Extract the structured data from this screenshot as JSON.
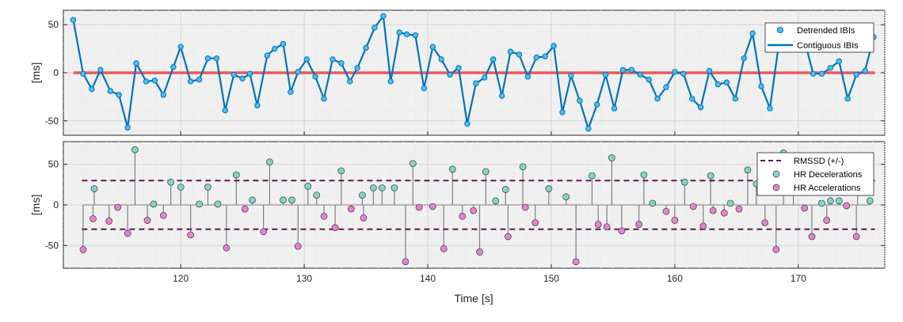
{
  "chart_data": [
    {
      "type": "line",
      "xlim": [
        110.5,
        177.0
      ],
      "ylim": [
        -65,
        65
      ],
      "yticks": [
        -50,
        0,
        50
      ],
      "ylabel": "[ms]",
      "grid": true,
      "legend_position": "top-right",
      "legend": [
        "Detrended IBIs",
        "Contiguous IBIs"
      ],
      "series": [
        {
          "name": "Detrended IBIs",
          "color": "#0072BD",
          "marker_color": "#4DBEEE",
          "x": [
            111.3,
            112.1,
            112.8,
            113.5,
            114.3,
            115.0,
            115.7,
            116.4,
            117.2,
            117.9,
            118.6,
            119.4,
            120.0,
            120.8,
            121.5,
            122.2,
            122.9,
            123.6,
            124.3,
            125.0,
            125.6,
            126.2,
            127.0,
            127.6,
            128.3,
            128.9,
            129.5,
            130.2,
            130.9,
            131.6,
            132.3,
            133.0,
            133.7,
            134.3,
            135.0,
            135.7,
            136.4,
            137.0,
            137.7,
            138.3,
            139.0,
            139.7,
            140.4,
            141.1,
            141.8,
            142.5,
            143.2,
            143.9,
            144.6,
            145.3,
            146.0,
            146.7,
            147.4,
            148.1,
            148.8,
            149.5,
            150.2,
            150.9,
            151.6,
            152.3,
            153.0,
            153.7,
            154.4,
            155.1,
            155.8,
            156.5,
            157.2,
            157.9,
            158.6,
            159.3,
            160.0,
            160.7,
            161.4,
            162.1,
            162.8,
            163.5,
            164.2,
            164.9,
            165.6,
            166.3,
            167.0,
            167.7,
            168.4,
            169.1,
            169.8,
            170.5,
            171.2,
            171.9,
            172.6,
            173.3,
            174.0,
            174.7,
            175.4,
            176.1
          ],
          "y": [
            55,
            -1,
            -17,
            3,
            -19,
            -23,
            -57,
            10,
            -9,
            -8,
            -23,
            6,
            27,
            -9,
            -7,
            15,
            15,
            -39,
            -2,
            -6,
            -1,
            -34,
            18,
            25,
            30,
            -20,
            1,
            14,
            -4,
            -27,
            14,
            10,
            -9,
            5,
            26,
            47,
            59,
            -9,
            42,
            40,
            39,
            -16,
            27,
            14,
            -2,
            5,
            -53,
            -11,
            -5,
            14,
            -24,
            22,
            19,
            -4,
            16,
            17,
            28,
            -41,
            -3,
            -29,
            -58,
            -33,
            -2,
            -37,
            3,
            3,
            -2,
            -7,
            -27,
            -15,
            1,
            -1,
            -27,
            -36,
            2,
            -12,
            -10,
            -27,
            15,
            41,
            -14,
            -37,
            28,
            26,
            28,
            34,
            -1,
            -1,
            5,
            12,
            -27,
            -2,
            2,
            37
          ]
        },
        {
          "name": "Contiguous IBIs",
          "color": "#0072BD"
        },
        {
          "name": "",
          "type": "hline",
          "y": 0,
          "x": [
            111.3,
            176.2
          ],
          "color": "#E85A5A"
        }
      ]
    },
    {
      "type": "stem",
      "xlim": [
        110.5,
        177.0
      ],
      "ylim": [
        -78,
        78
      ],
      "yticks": [
        -50,
        0,
        50
      ],
      "xticks": [
        120,
        130,
        140,
        150,
        160,
        170
      ],
      "xlabel": "Time [s]",
      "ylabel": "[ms]",
      "grid": true,
      "legend_position": "top-right",
      "legend": [
        "RMSSD (+/-)",
        "HR Decelerations",
        "HR Accelerations"
      ],
      "rmssd": 30,
      "colors": {
        "rmssd": "#5B1B4D",
        "decel": "#7FD6C8",
        "accel": "#E97FD6",
        "stem": "#7F7F7F"
      },
      "series": [
        {
          "name": "HR Decelerations",
          "x": [
            113.0,
            116.3,
            117.8,
            119.2,
            120.0,
            121.5,
            122.2,
            123.0,
            124.5,
            125.8,
            127.2,
            128.3,
            129.0,
            130.3,
            131.0,
            133.0,
            134.7,
            135.6,
            136.3,
            137.3,
            138.8,
            142.0,
            144.7,
            145.5,
            146.3,
            147.7,
            149.8,
            151.2,
            153.3,
            154.9,
            157.5,
            158.2,
            160.8,
            162.9,
            164.5,
            165.9,
            166.6,
            168.8,
            169.6,
            171.9,
            172.6,
            173.3,
            174.8,
            175.8
          ],
          "y": [
            20,
            68,
            1,
            28,
            22,
            1,
            22,
            1,
            37,
            6,
            53,
            6,
            6,
            23,
            12,
            42,
            12,
            21,
            21,
            21,
            51,
            44,
            41,
            5,
            19,
            47,
            20,
            10,
            36,
            58,
            37,
            2,
            28,
            36,
            2,
            43,
            26,
            64,
            26,
            2,
            5,
            5,
            20,
            5
          ]
        },
        {
          "name": "HR Accelerations",
          "x": [
            112.1,
            112.9,
            114.2,
            114.9,
            115.7,
            117.3,
            118.6,
            120.8,
            123.7,
            125.2,
            126.7,
            129.5,
            131.6,
            132.5,
            133.8,
            134.8,
            138.2,
            139.3,
            140.4,
            141.3,
            142.8,
            143.7,
            144.2,
            146.5,
            147.9,
            148.7,
            152.0,
            153.8,
            154.5,
            155.7,
            157.1,
            159.3,
            160.0,
            161.5,
            162.3,
            163.1,
            164.0,
            165.2,
            167.3,
            168.2,
            170.5,
            171.1,
            172.3,
            173.9,
            174.7
          ],
          "y": [
            -55,
            -17,
            -20,
            -3,
            -35,
            -19,
            -13,
            -37,
            -53,
            -5,
            -33,
            -51,
            -14,
            -28,
            -5,
            -16,
            -70,
            -3,
            -2,
            -54,
            -14,
            -7,
            -58,
            -39,
            -3,
            -22,
            -70,
            -24,
            -27,
            -32,
            -24,
            -8,
            -19,
            -2,
            -26,
            -7,
            -10,
            -5,
            -22,
            -55,
            -4,
            -39,
            -19,
            -1,
            -39
          ]
        }
      ]
    }
  ]
}
